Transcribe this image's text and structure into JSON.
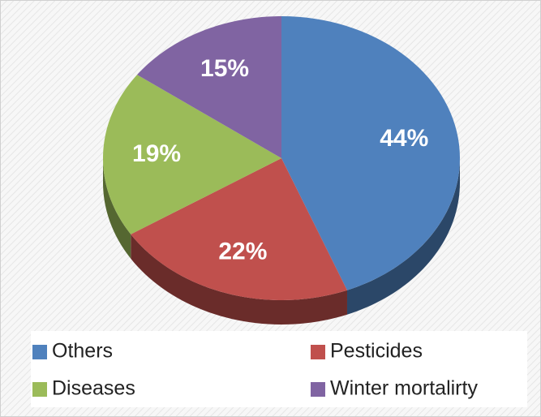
{
  "chart_data": {
    "type": "pie",
    "categories": [
      "Others",
      "Pesticides",
      "Diseases",
      "Winter mortalirty"
    ],
    "values": [
      44,
      22,
      19,
      15
    ],
    "value_labels": [
      "44%",
      "22%",
      "19%",
      "15%"
    ],
    "colors": [
      "#4f81bd",
      "#c0504d",
      "#9bbb59",
      "#8064a2"
    ],
    "legend": "bottom"
  }
}
